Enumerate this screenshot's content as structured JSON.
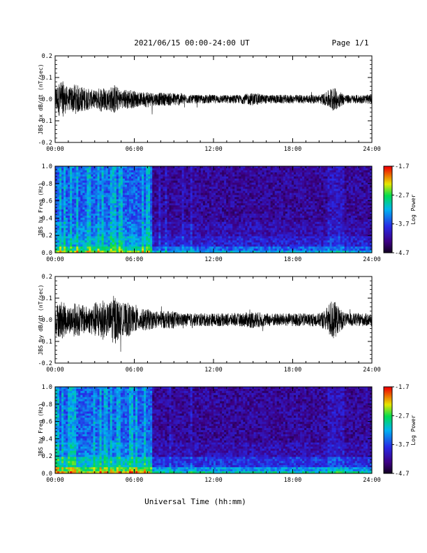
{
  "header": {
    "title": "2021/06/15  00:00-24:00 UT",
    "page": "Page 1/1"
  },
  "xlabel": "Universal Time (hh:mm)",
  "colorbar": {
    "label": "Log Power",
    "ticks": [
      "-1.7",
      "-2.7",
      "-3.7",
      "-4.7"
    ],
    "range": [
      -4.7,
      -1.7
    ]
  },
  "chart_data": [
    {
      "type": "line",
      "ylabel": "JBS bx dB/dt (nT/sec)",
      "xlim": [
        0,
        24
      ],
      "ylim": [
        -0.2,
        0.2
      ],
      "x_tick_labels": [
        "00:00",
        "06:00",
        "12:00",
        "18:00",
        "24:00"
      ],
      "y_tick_labels": [
        "0.2",
        "0.1",
        "0.0",
        "-0.1",
        "-0.2"
      ],
      "envelope": {
        "x": [
          0,
          0.5,
          1,
          1.5,
          2,
          2.5,
          3,
          3.5,
          4,
          4.5,
          5,
          5.5,
          6,
          6.5,
          7,
          7.5,
          8,
          8.5,
          9,
          9.5,
          10,
          11,
          12,
          13,
          14,
          15,
          16,
          17,
          18,
          19,
          20,
          20.5,
          21,
          21.5,
          22,
          23,
          24
        ],
        "y": [
          0.06,
          0.09,
          0.05,
          0.07,
          0.06,
          0.05,
          0.04,
          0.06,
          0.05,
          0.07,
          0.04,
          0.05,
          0.04,
          0.03,
          0.04,
          0.03,
          0.03,
          0.03,
          0.03,
          0.03,
          0.02,
          0.02,
          0.02,
          0.02,
          0.02,
          0.03,
          0.02,
          0.02,
          0.02,
          0.02,
          0.02,
          0.03,
          0.06,
          0.04,
          0.02,
          0.02,
          0.02
        ]
      }
    },
    {
      "type": "heatmap",
      "ylabel": "JBS bx Freq (Hz)",
      "xlim": [
        0,
        24
      ],
      "ylim": [
        0,
        1.0
      ],
      "x_tick_labels": [
        "00:00",
        "06:00",
        "12:00",
        "18:00",
        "24:00"
      ],
      "y_tick_labels": [
        "1.0",
        "0.8",
        "0.6",
        "0.4",
        "0.2",
        "0.0"
      ]
    },
    {
      "type": "line",
      "ylabel": "JBS by dB/dt (nT/sec)",
      "xlim": [
        0,
        24
      ],
      "ylim": [
        -0.2,
        0.2
      ],
      "x_tick_labels": [
        "00:00",
        "06:00",
        "12:00",
        "18:00",
        "24:00"
      ],
      "y_tick_labels": [
        "0.2",
        "0.1",
        "0.0",
        "-0.1",
        "-0.2"
      ],
      "envelope": {
        "x": [
          0,
          0.5,
          1,
          1.5,
          2,
          2.5,
          3,
          3.5,
          4,
          4.5,
          5,
          5.5,
          6,
          6.5,
          7,
          7.5,
          8,
          8.5,
          9,
          9.5,
          10,
          11,
          12,
          13,
          14,
          15,
          16,
          17,
          18,
          19,
          20,
          20.5,
          21,
          21.5,
          22,
          23,
          24
        ],
        "y": [
          0.07,
          0.09,
          0.06,
          0.08,
          0.07,
          0.06,
          0.08,
          0.1,
          0.07,
          0.12,
          0.07,
          0.08,
          0.06,
          0.05,
          0.05,
          0.04,
          0.04,
          0.04,
          0.04,
          0.03,
          0.03,
          0.03,
          0.03,
          0.03,
          0.03,
          0.04,
          0.03,
          0.03,
          0.03,
          0.03,
          0.03,
          0.05,
          0.1,
          0.06,
          0.03,
          0.03,
          0.03
        ]
      }
    },
    {
      "type": "heatmap",
      "ylabel": "JBS by Freq (Hz)",
      "xlim": [
        0,
        24
      ],
      "ylim": [
        0,
        1.0
      ],
      "x_tick_labels": [
        "00:00",
        "06:00",
        "12:00",
        "18:00",
        "24:00"
      ],
      "y_tick_labels": [
        "1.0",
        "0.8",
        "0.6",
        "0.4",
        "0.2",
        "0.0"
      ]
    }
  ]
}
